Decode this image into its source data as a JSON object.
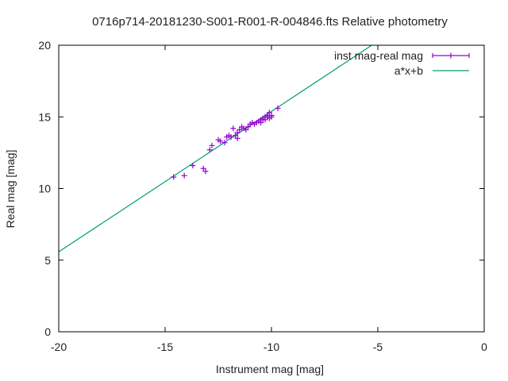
{
  "chart_data": {
    "type": "scatter",
    "title": "0716p714-20181230-S001-R001-R-004846.fts Relative photometry",
    "xlabel": "Instrument mag [mag]",
    "ylabel": "Real mag [mag]",
    "xlim": [
      -20,
      0
    ],
    "ylim": [
      0,
      20
    ],
    "xticks": [
      -20,
      -15,
      -10,
      -5,
      0
    ],
    "yticks": [
      0,
      5,
      10,
      15,
      20
    ],
    "xtick_labels": [
      "-20",
      "-15",
      "-10",
      "-5",
      "0"
    ],
    "ytick_labels": [
      "0",
      "5",
      "10",
      "15",
      "20"
    ],
    "grid": false,
    "legend_position": "top-right",
    "series": [
      {
        "name": "inst mag-real mag",
        "kind": "points",
        "color": "#9400d3",
        "x": [
          -14.6,
          -14.1,
          -13.7,
          -13.2,
          -13.1,
          -12.9,
          -12.8,
          -12.5,
          -12.4,
          -12.2,
          -12.1,
          -12.0,
          -11.9,
          -11.8,
          -11.7,
          -11.6,
          -11.6,
          -11.5,
          -11.4,
          -11.3,
          -11.2,
          -11.1,
          -11.0,
          -10.9,
          -10.8,
          -10.7,
          -10.6,
          -10.5,
          -10.5,
          -10.4,
          -10.4,
          -10.3,
          -10.3,
          -10.2,
          -10.2,
          -10.1,
          -10.1,
          -10.0,
          -10.0,
          -9.7
        ],
        "y": [
          10.8,
          10.9,
          11.6,
          11.4,
          11.2,
          12.7,
          13.0,
          13.4,
          13.3,
          13.2,
          13.6,
          13.7,
          13.6,
          14.2,
          13.7,
          13.5,
          13.9,
          14.1,
          14.3,
          14.2,
          14.1,
          14.3,
          14.5,
          14.6,
          14.5,
          14.6,
          14.7,
          14.8,
          14.6,
          14.9,
          14.8,
          15.0,
          14.8,
          15.1,
          15.0,
          14.9,
          15.3,
          15.1,
          15.0,
          15.6
        ]
      },
      {
        "name": "a*x+b",
        "kind": "line",
        "color": "#009e73",
        "slope": 0.98,
        "intercept": 25.18
      }
    ]
  }
}
